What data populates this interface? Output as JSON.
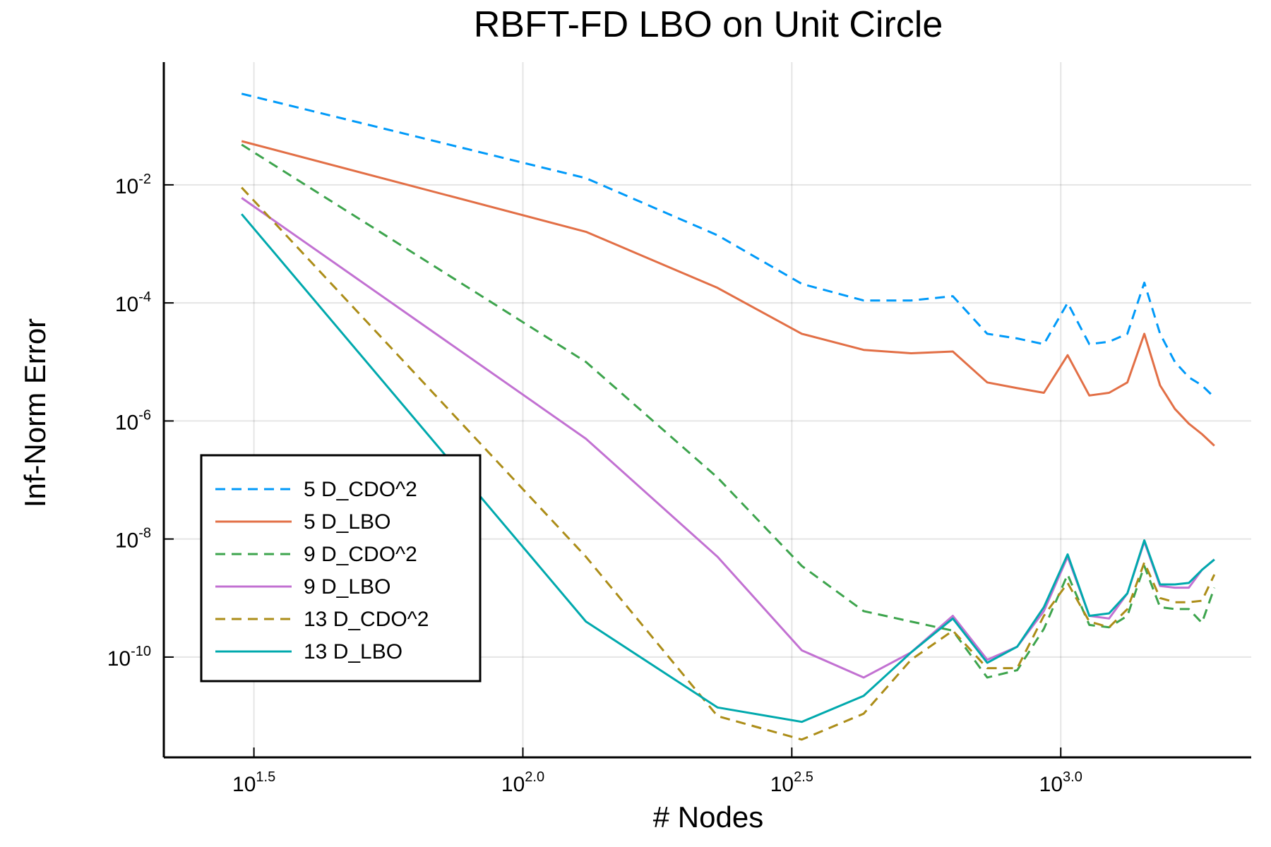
{
  "chart_data": {
    "type": "line",
    "title": "RBFT-FD LBO on Unit Circle",
    "xlabel": "# Nodes",
    "ylabel": "Inf-Norm Error",
    "x_scale": "log10",
    "y_scale": "log10",
    "xlim": [
      21.5,
      2260
    ],
    "ylim": [
      2e-12,
      1.2
    ],
    "grid": true,
    "legend_position": "bottom-left",
    "x_ticks": [
      {
        "value": 31.62,
        "base": "10",
        "exp": "1.5"
      },
      {
        "value": 100,
        "base": "10",
        "exp": "2.0"
      },
      {
        "value": 316.2,
        "base": "10",
        "exp": "2.5"
      },
      {
        "value": 1000,
        "base": "10",
        "exp": "3.0"
      }
    ],
    "y_ticks": [
      {
        "value": 0.01,
        "base": "10",
        "exp": "-2"
      },
      {
        "value": 0.0001,
        "base": "10",
        "exp": "-4"
      },
      {
        "value": 1e-06,
        "base": "10",
        "exp": "-6"
      },
      {
        "value": 1e-08,
        "base": "10",
        "exp": "-8"
      },
      {
        "value": 1e-10,
        "base": "10",
        "exp": "-10"
      }
    ],
    "x": [
      30,
      131,
      230,
      330,
      430,
      527,
      630,
      730,
      830,
      930,
      1030,
      1130,
      1230,
      1330,
      1430,
      1530,
      1630,
      1730,
      1830,
      1930
    ],
    "series": [
      {
        "name": "5 D_CDO^2",
        "color": "#009af9",
        "dash": true,
        "values": [
          0.35,
          0.013,
          0.0014,
          0.00021,
          0.00011,
          0.00011,
          0.00013,
          3e-05,
          2.5e-05,
          2e-05,
          0.0001,
          2e-05,
          2.2e-05,
          3e-05,
          0.00022,
          3e-05,
          1e-05,
          5.5e-06,
          4e-06,
          2.5e-06
        ]
      },
      {
        "name": "5 D_LBO",
        "color": "#e26f46",
        "dash": false,
        "values": [
          0.055,
          0.0016,
          0.00018,
          3e-05,
          1.6e-05,
          1.4e-05,
          1.5e-05,
          4.5e-06,
          3.6e-06,
          3e-06,
          1.3e-05,
          2.7e-06,
          3e-06,
          4.5e-06,
          3e-05,
          4e-06,
          1.6e-06,
          9e-07,
          6e-07,
          3.8e-07
        ]
      },
      {
        "name": "9 D_CDO^2",
        "color": "#3da44d",
        "dash": true,
        "values": [
          0.048,
          1e-05,
          1.1e-07,
          3.5e-09,
          6e-10,
          4e-10,
          2.8e-10,
          4.5e-11,
          6e-11,
          3e-10,
          2.5e-09,
          3.5e-10,
          3.2e-10,
          5e-10,
          3.5e-09,
          7e-10,
          6.5e-10,
          6.5e-10,
          3.8e-10,
          1.5e-09
        ]
      },
      {
        "name": "9 D_LBO",
        "color": "#c271d2",
        "dash": false,
        "values": [
          0.006,
          5e-07,
          5e-09,
          1.3e-10,
          4.5e-11,
          1.2e-10,
          5e-10,
          9e-11,
          1.5e-10,
          6e-10,
          5e-09,
          5e-10,
          4.5e-10,
          1.2e-09,
          9e-09,
          1.6e-09,
          1.5e-09,
          1.5e-09,
          3e-09,
          4.5e-09
        ]
      },
      {
        "name": "13 D_CDO^2",
        "color": "#ac8d18",
        "dash": true,
        "values": [
          0.009,
          5e-09,
          1e-11,
          4e-12,
          1.1e-11,
          9e-11,
          2.8e-10,
          6.5e-11,
          6.5e-11,
          5e-10,
          1.8e-09,
          4e-10,
          3.2e-10,
          6.5e-10,
          4e-09,
          1e-09,
          8.5e-10,
          8.5e-10,
          9e-10,
          2.5e-09
        ]
      },
      {
        "name": "13 D_LBO",
        "color": "#00a9ad",
        "dash": false,
        "values": [
          0.0032,
          4e-10,
          1.4e-11,
          8e-12,
          2.2e-11,
          1.2e-10,
          4.5e-10,
          8e-11,
          1.5e-10,
          7e-10,
          5.5e-09,
          5e-10,
          5.5e-10,
          1.2e-09,
          9.5e-09,
          1.7e-09,
          1.7e-09,
          1.8e-09,
          3e-09,
          4.5e-09
        ]
      }
    ]
  }
}
